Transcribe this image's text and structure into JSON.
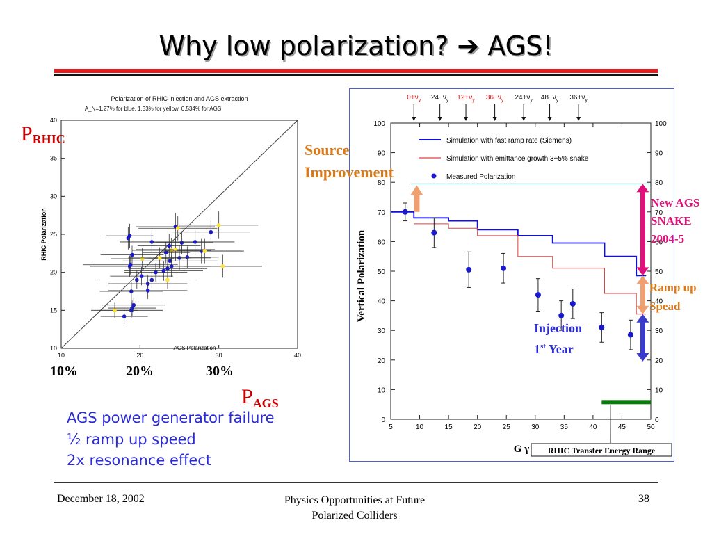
{
  "slide": {
    "title": "Why low polarization? ➔ AGS!",
    "footer_date": "December 18, 2002",
    "footer_center_1": "Physics Opportunities at Future",
    "footer_center_2": "Polarized Colliders",
    "footer_page": "38"
  },
  "left_labels": {
    "p_rhic_main": "P",
    "p_rhic_sub": "RHIC",
    "p_ags_main": "P",
    "p_ags_sub": "AGS",
    "pct_10": "10%",
    "pct_20": "20%",
    "pct_30": "30%"
  },
  "bullets": [
    "AGS power generator failure",
    "½  ramp up speed",
    "2x resonance effect"
  ],
  "annotations": {
    "source_1": "Source",
    "source_2": "Improvement",
    "new_ags_1": "New AGS",
    "new_ags_2": "SNAKE",
    "new_ags_3": "2004-5",
    "ramp_1": "Ramp up",
    "ramp_2": "Spead",
    "inj_1": "Injection",
    "inj_2_main": "1",
    "inj_2_sup": "st",
    "inj_2_rest": " Year"
  },
  "colors": {
    "orange": "#f0a070",
    "magenta": "#e0107a",
    "blue_arrow": "#3a3acc",
    "rule_red": "#e11d1d",
    "green_bar": "#0a7a0a"
  },
  "chart_data": [
    {
      "type": "scatter",
      "title": "Polarization of RHIC  injection and AGS extraction",
      "subtitle": "A_N=1.27% for blue, 1.33% for yellow, 0.534% for AGS",
      "xlabel": "AGS Polarization",
      "ylabel": "RHIC Polarization",
      "xlim": [
        10,
        40
      ],
      "ylim": [
        10,
        40
      ],
      "x_ticks": [
        10,
        20,
        30,
        40
      ],
      "y_ticks": [
        10,
        15,
        20,
        25,
        30,
        35,
        40
      ],
      "diagonal": true,
      "series": [
        {
          "name": "blue",
          "color": "#1a1acc",
          "points": [
            [
              18.5,
              24.5
            ],
            [
              18.7,
              24.8
            ],
            [
              19.0,
              22.3
            ],
            [
              21.5,
              24.0
            ],
            [
              23.3,
              22.6
            ],
            [
              23.7,
              23.5
            ],
            [
              24.5,
              26.0
            ],
            [
              25.0,
              21.9
            ],
            [
              25.3,
              23.9
            ],
            [
              27.0,
              24.0
            ],
            [
              27.8,
              22.8
            ],
            [
              29.0,
              25.3
            ],
            [
              18.7,
              20.8
            ],
            [
              18.8,
              21.0
            ],
            [
              19.6,
              19.0
            ],
            [
              21.0,
              18.5
            ],
            [
              22.0,
              20.0
            ],
            [
              23.0,
              20.2
            ],
            [
              23.5,
              20.5
            ],
            [
              24.0,
              20.8
            ],
            [
              26.0,
              22.0
            ],
            [
              20.2,
              19.5
            ],
            [
              21.5,
              19.0
            ],
            [
              23.8,
              21.5
            ],
            [
              18.9,
              17.5
            ],
            [
              21.0,
              17.6
            ],
            [
              19.0,
              15.3
            ],
            [
              19.2,
              15.7
            ],
            [
              18.0,
              14.2
            ],
            [
              18.9,
              15.0
            ]
          ],
          "xerr": [
            3,
            3,
            4,
            4,
            3,
            4,
            5,
            4,
            4,
            5,
            5,
            5,
            5,
            6,
            5,
            5,
            4,
            5,
            5,
            5,
            4,
            4,
            5,
            6,
            4,
            5,
            3,
            4,
            3,
            4
          ],
          "yerr": [
            1.5,
            1.6,
            1.2,
            1.5,
            1.4,
            1.6,
            1.8,
            1.6,
            1.5,
            1.8,
            1.6,
            1.5,
            1.4,
            1.3,
            1.2,
            1.1,
            1.2,
            1.3,
            1.2,
            1.4,
            1.4,
            1.2,
            1.1,
            1.3,
            1.2,
            1.1,
            1.0,
            1.0,
            1.0,
            1.0
          ]
        },
        {
          "name": "yellow",
          "color": "#ffe030",
          "points": [
            [
              24.8,
              25.8
            ],
            [
              30.0,
              26.2
            ],
            [
              20.3,
              21.8
            ],
            [
              24.0,
              22.9
            ],
            [
              24.5,
              23.0
            ],
            [
              28.2,
              22.8
            ],
            [
              30.5,
              20.8
            ],
            [
              22.5,
              21.9
            ],
            [
              23.5,
              19.0
            ],
            [
              16.8,
              15.0
            ]
          ],
          "xerr": [
            5,
            5,
            4,
            5,
            5,
            5,
            5,
            4,
            4,
            3
          ],
          "yerr": [
            1.6,
            1.8,
            1.4,
            1.6,
            1.5,
            1.6,
            1.5,
            1.4,
            1.2,
            1.0
          ]
        }
      ]
    },
    {
      "type": "line",
      "xlabel": "G γ",
      "ylabel": "Vertical Polarization",
      "xlim": [
        5,
        50
      ],
      "ylim": [
        0,
        100
      ],
      "x_ticks": [
        5,
        10,
        15,
        20,
        25,
        30,
        35,
        40,
        45,
        50
      ],
      "y_ticks": [
        0,
        10,
        20,
        30,
        40,
        50,
        60,
        70,
        80,
        90,
        100
      ],
      "top_labels": [
        {
          "text": "0+ν",
          "sub": "y",
          "x": 9,
          "red": true
        },
        {
          "text": "24−ν",
          "sub": "y",
          "x": 13.5,
          "red": false
        },
        {
          "text": "12+ν",
          "sub": "y",
          "x": 18,
          "red": true
        },
        {
          "text": "36−ν",
          "sub": "y",
          "x": 23,
          "red": true
        },
        {
          "text": "24+ν",
          "sub": "y",
          "x": 28,
          "red": false
        },
        {
          "text": "48−ν",
          "sub": "y",
          "x": 32.5,
          "red": false
        },
        {
          "text": "36+ν",
          "sub": "y",
          "x": 37.5,
          "red": false
        }
      ],
      "reference_line_y": 79.5,
      "legend": [
        {
          "label": "Simulation with  fast ramp rate (Siemens)",
          "kind": "line",
          "color": "#1010dd"
        },
        {
          "label": "Simulation with emittance growth 3+5% snake",
          "kind": "line",
          "color": "#e04040"
        },
        {
          "label": "Measured Polarization",
          "kind": "marker",
          "color": "#1a1acc"
        }
      ],
      "series": [
        {
          "name": "Simulation with  fast ramp rate (Siemens)",
          "step": true,
          "color": "#1010dd",
          "x": [
            5,
            9,
            15,
            20,
            27,
            33,
            42,
            47.5
          ],
          "y": [
            70,
            68,
            67,
            64,
            62,
            59.5,
            55,
            48.5
          ]
        },
        {
          "name": "Simulation with emittance growth 3+5% snake",
          "step": true,
          "color": "#e04040",
          "x": [
            9,
            15,
            20,
            27,
            33,
            42,
            47.5
          ],
          "y": [
            66,
            64.5,
            62,
            55,
            51,
            42.5,
            35.5
          ]
        },
        {
          "name": "Measured Polarization",
          "marker": true,
          "color": "#1a1acc",
          "x": [
            7.5,
            12.5,
            18.5,
            24.5,
            30.5,
            34.5,
            36.5,
            41.5,
            46.5
          ],
          "y": [
            70,
            63,
            50.5,
            51,
            42,
            35,
            39,
            31,
            28.5
          ],
          "yerr": [
            3,
            5,
            6,
            5,
            5.5,
            5,
            5,
            5,
            5
          ]
        }
      ],
      "transfer_label": "RHIC Transfer Energy Range",
      "transfer_range": [
        41.5,
        50
      ]
    }
  ]
}
